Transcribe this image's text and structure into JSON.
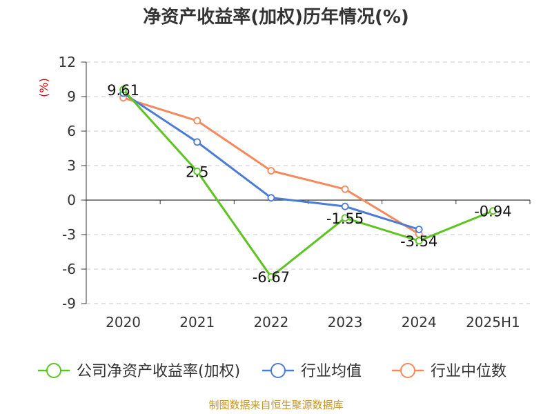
{
  "chart_data": {
    "type": "line",
    "title": "净资产收益率(加权)历年情况(%)",
    "ylabel": "(%)",
    "categories": [
      "2020",
      "2021",
      "2022",
      "2023",
      "2024",
      "2025H1"
    ],
    "ylim": [
      -9,
      12
    ],
    "yticks": [
      "12",
      "9",
      "6",
      "3",
      "0",
      "-3",
      "-6",
      "-9"
    ],
    "ytick_values": [
      12,
      9,
      6,
      3,
      0,
      -3,
      -6,
      -9
    ],
    "grid": true,
    "legend_position": "bottom",
    "series": [
      {
        "name": "公司净资产收益率(加权)",
        "color": "#5cc421",
        "values": [
          9.61,
          2.5,
          -6.67,
          -1.55,
          -3.54,
          -0.94
        ],
        "labels": [
          "9.61",
          "2.5",
          "-6.67",
          "-1.55",
          "-3.54",
          "-0.94"
        ]
      },
      {
        "name": "行业均值",
        "color": "#4a7bd6",
        "values": [
          9.3,
          5.05,
          0.2,
          -0.55,
          -2.55,
          null
        ]
      },
      {
        "name": "行业中位数",
        "color": "#f48a5c",
        "values": [
          8.9,
          6.9,
          2.55,
          0.95,
          -2.95,
          null
        ]
      }
    ]
  },
  "source": "制图数据来自恒生聚源数据库"
}
